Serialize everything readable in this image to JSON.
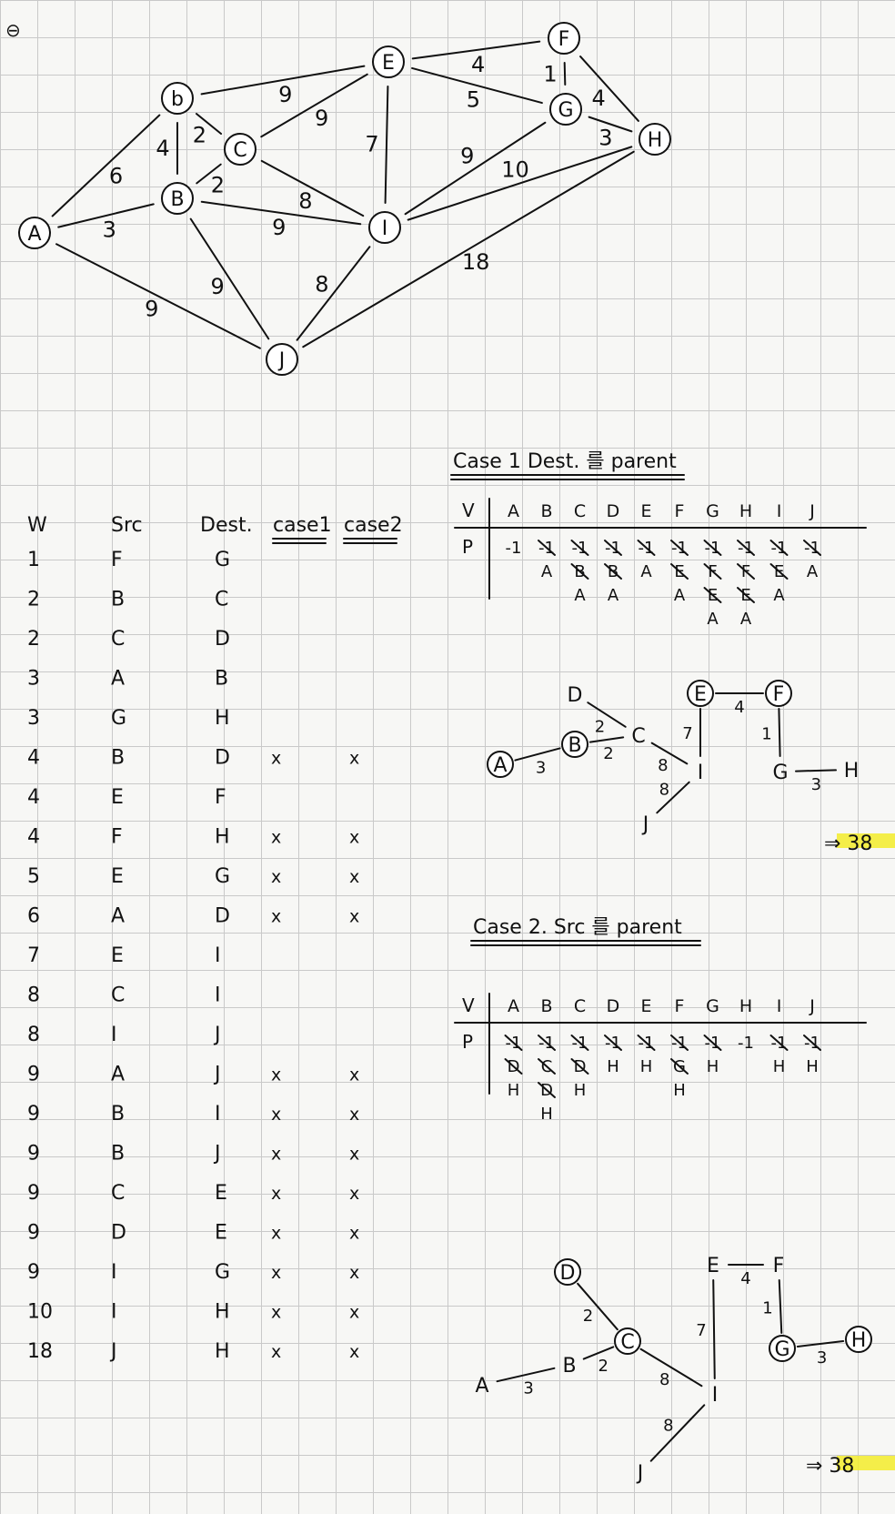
{
  "corner_mark": "⊖",
  "graph": {
    "nodes": [
      {
        "id": "A",
        "label": "A"
      },
      {
        "id": "b",
        "label": "b"
      },
      {
        "id": "B",
        "label": "B"
      },
      {
        "id": "C",
        "label": "C"
      },
      {
        "id": "E",
        "label": "E"
      },
      {
        "id": "F",
        "label": "F"
      },
      {
        "id": "G",
        "label": "G"
      },
      {
        "id": "H",
        "label": "H"
      },
      {
        "id": "I",
        "label": "I"
      },
      {
        "id": "J",
        "label": "J"
      }
    ],
    "edges": [
      {
        "from": "A",
        "to": "b",
        "w": "6"
      },
      {
        "from": "A",
        "to": "B",
        "w": "3"
      },
      {
        "from": "A",
        "to": "J",
        "w": "9"
      },
      {
        "from": "b",
        "to": "B",
        "w": "4"
      },
      {
        "from": "b",
        "to": "C",
        "w": "2"
      },
      {
        "from": "b",
        "to": "E",
        "w": "9"
      },
      {
        "from": "B",
        "to": "C",
        "w": "2"
      },
      {
        "from": "B",
        "to": "I",
        "w": "9"
      },
      {
        "from": "B",
        "to": "J",
        "w": "9"
      },
      {
        "from": "C",
        "to": "E",
        "w": "9"
      },
      {
        "from": "C",
        "to": "I",
        "w": "8"
      },
      {
        "from": "E",
        "to": "F",
        "w": "4"
      },
      {
        "from": "E",
        "to": "G",
        "w": "5"
      },
      {
        "from": "E",
        "to": "I",
        "w": "7"
      },
      {
        "from": "F",
        "to": "G",
        "w": "1"
      },
      {
        "from": "F",
        "to": "H",
        "w": "4"
      },
      {
        "from": "G",
        "to": "H",
        "w": "3"
      },
      {
        "from": "G",
        "to": "I",
        "w": "9"
      },
      {
        "from": "H",
        "to": "I",
        "w": "10"
      },
      {
        "from": "I",
        "to": "J",
        "w": "8"
      },
      {
        "from": "J",
        "to": "H",
        "w": "18"
      }
    ]
  },
  "edge_table": {
    "headers": [
      "W",
      "Src",
      "Dest.",
      "case1",
      "case2"
    ],
    "rows": [
      {
        "w": "1",
        "src": "F",
        "dest": "G",
        "c1": "",
        "c2": ""
      },
      {
        "w": "2",
        "src": "B",
        "dest": "C",
        "c1": "",
        "c2": ""
      },
      {
        "w": "2",
        "src": "C",
        "dest": "D",
        "c1": "",
        "c2": ""
      },
      {
        "w": "3",
        "src": "A",
        "dest": "B",
        "c1": "",
        "c2": ""
      },
      {
        "w": "3",
        "src": "G",
        "dest": "H",
        "c1": "",
        "c2": ""
      },
      {
        "w": "4",
        "src": "B",
        "dest": "D",
        "c1": "x",
        "c2": "x"
      },
      {
        "w": "4",
        "src": "E",
        "dest": "F",
        "c1": "",
        "c2": ""
      },
      {
        "w": "4",
        "src": "F",
        "dest": "H",
        "c1": "x",
        "c2": "x"
      },
      {
        "w": "5",
        "src": "E",
        "dest": "G",
        "c1": "x",
        "c2": "x"
      },
      {
        "w": "6",
        "src": "A",
        "dest": "D",
        "c1": "x",
        "c2": "x"
      },
      {
        "w": "7",
        "src": "E",
        "dest": "I",
        "c1": "",
        "c2": ""
      },
      {
        "w": "8",
        "src": "C",
        "dest": "I",
        "c1": "",
        "c2": ""
      },
      {
        "w": "8",
        "src": "I",
        "dest": "J",
        "c1": "",
        "c2": ""
      },
      {
        "w": "9",
        "src": "A",
        "dest": "J",
        "c1": "x",
        "c2": "x"
      },
      {
        "w": "9",
        "src": "B",
        "dest": "I",
        "c1": "x",
        "c2": "x"
      },
      {
        "w": "9",
        "src": "B",
        "dest": "J",
        "c1": "x",
        "c2": "x"
      },
      {
        "w": "9",
        "src": "C",
        "dest": "E",
        "c1": "x",
        "c2": "x"
      },
      {
        "w": "9",
        "src": "D",
        "dest": "E",
        "c1": "x",
        "c2": "x"
      },
      {
        "w": "9",
        "src": "I",
        "dest": "G",
        "c1": "x",
        "c2": "x"
      },
      {
        "w": "10",
        "src": "I",
        "dest": "H",
        "c1": "x",
        "c2": "x"
      },
      {
        "w": "18",
        "src": "J",
        "dest": "H",
        "c1": "x",
        "c2": "x"
      }
    ]
  },
  "case1": {
    "title": "Case 1  Dest. 를 parent",
    "v_label": "V",
    "p_label": "P",
    "columns": [
      {
        "v": "A",
        "p": [
          "-1"
        ]
      },
      {
        "v": "B",
        "p": [
          "-1",
          "A"
        ]
      },
      {
        "v": "C",
        "p": [
          "-1",
          "B",
          "A"
        ]
      },
      {
        "v": "D",
        "p": [
          "-1",
          "B",
          "A"
        ]
      },
      {
        "v": "E",
        "p": [
          "-1",
          "A"
        ]
      },
      {
        "v": "F",
        "p": [
          "-1",
          "E",
          "A"
        ]
      },
      {
        "v": "G",
        "p": [
          "-1",
          "F",
          "E",
          "A"
        ]
      },
      {
        "v": "H",
        "p": [
          "-1",
          "F",
          "E",
          "A"
        ]
      },
      {
        "v": "I",
        "p": [
          "-1",
          "E",
          "A"
        ]
      },
      {
        "v": "J",
        "p": [
          "-1",
          "A"
        ]
      }
    ],
    "tree_edges": [
      {
        "a": "A",
        "b": "B",
        "w": "3"
      },
      {
        "a": "B",
        "b": "C",
        "w": "2"
      },
      {
        "a": "D",
        "b": "C",
        "w": "2"
      },
      {
        "a": "C",
        "b": "I",
        "w": "8"
      },
      {
        "a": "E",
        "b": "I",
        "w": "7"
      },
      {
        "a": "E",
        "b": "F",
        "w": "4"
      },
      {
        "a": "F",
        "b": "G",
        "w": "1"
      },
      {
        "a": "G",
        "b": "H",
        "w": "3"
      },
      {
        "a": "I",
        "b": "J",
        "w": "8"
      }
    ],
    "total": "⇒ 38"
  },
  "case2": {
    "title": "Case 2.  Src 를 parent",
    "v_label": "V",
    "p_label": "P",
    "columns": [
      {
        "v": "A",
        "p": [
          "-1",
          "D",
          "H"
        ]
      },
      {
        "v": "B",
        "p": [
          "-1",
          "C",
          "D",
          "H"
        ]
      },
      {
        "v": "C",
        "p": [
          "-1",
          "D",
          "H"
        ]
      },
      {
        "v": "D",
        "p": [
          "-1",
          "H"
        ]
      },
      {
        "v": "E",
        "p": [
          "-1",
          "H"
        ]
      },
      {
        "v": "F",
        "p": [
          "-1",
          "G",
          "H"
        ]
      },
      {
        "v": "G",
        "p": [
          "-1",
          "H"
        ]
      },
      {
        "v": "H",
        "p": [
          "-1"
        ]
      },
      {
        "v": "I",
        "p": [
          "-1",
          "H"
        ]
      },
      {
        "v": "J",
        "p": [
          "-1",
          "H"
        ]
      }
    ],
    "tree_edges": [
      {
        "a": "A",
        "b": "B",
        "w": "3"
      },
      {
        "a": "B",
        "b": "C",
        "w": "2"
      },
      {
        "a": "D",
        "b": "C",
        "w": "2"
      },
      {
        "a": "C",
        "b": "I",
        "w": "8"
      },
      {
        "a": "E",
        "b": "I",
        "w": "7"
      },
      {
        "a": "E",
        "b": "F",
        "w": "4"
      },
      {
        "a": "F",
        "b": "G",
        "w": "1"
      },
      {
        "a": "G",
        "b": "H",
        "w": "3"
      },
      {
        "a": "I",
        "b": "J",
        "w": "8"
      }
    ],
    "total": "⇒ 38"
  }
}
